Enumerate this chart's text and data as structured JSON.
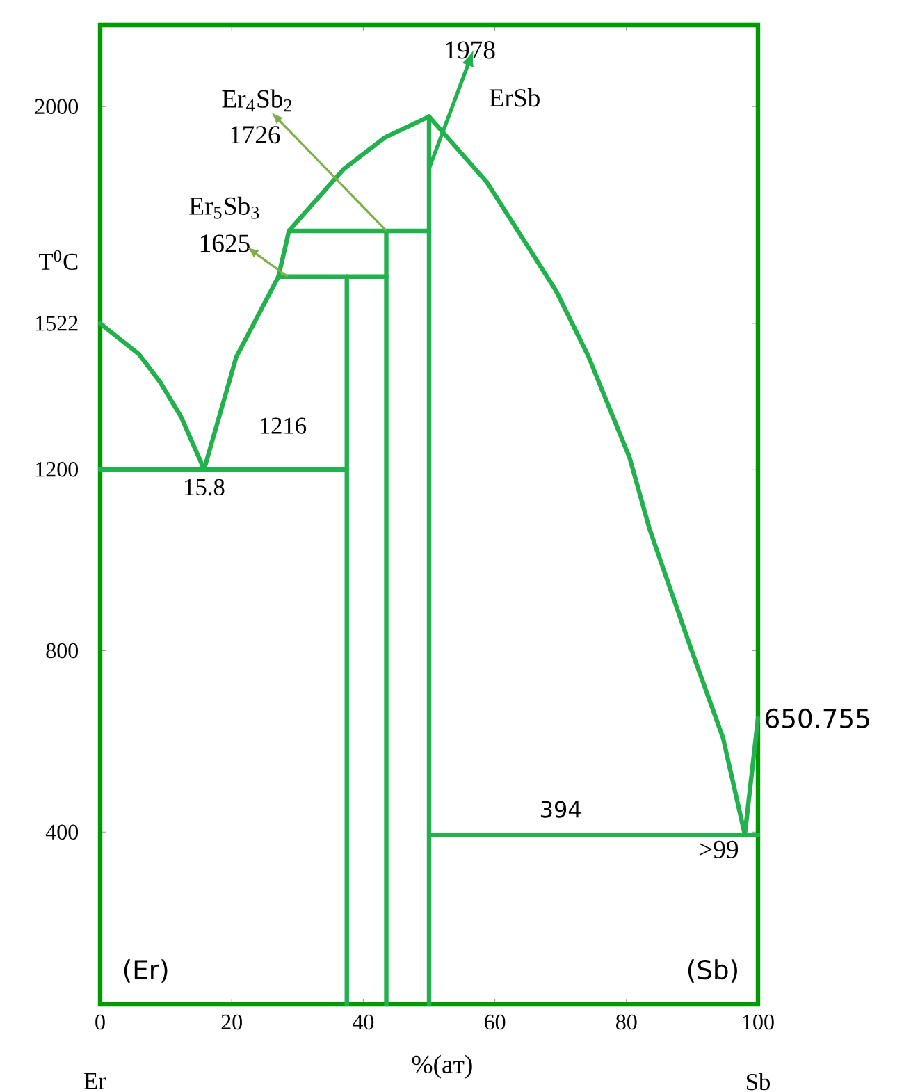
{
  "chart_data": {
    "type": "line",
    "xlabel": "%(aт)",
    "ylabel": "T$^{0}$C",
    "xlim": [
      0,
      100
    ],
    "ylim": [
      20,
      2180
    ],
    "xticks": [
      0,
      20,
      40,
      60,
      80,
      100
    ],
    "yticks": [
      400,
      800,
      1200,
      1522,
      2000
    ],
    "grid": false,
    "marker": "none",
    "line_style": "solid",
    "series": [
      {
        "color": "#22b14c",
        "x": [
          0,
          5.9,
          9.1,
          12.3,
          15.8
        ],
        "values": [
          1522,
          1454,
          1393,
          1316,
          1200
        ]
      },
      {
        "color": "#22b14c",
        "x": [
          15.8,
          20.7,
          27.1,
          28.7,
          37,
          43.3,
          50
        ],
        "values": [
          1200,
          1448,
          1625,
          1726,
          1862,
          1932,
          1978
        ]
      },
      {
        "color": "#22b14c",
        "x": [
          50,
          58.8,
          69.3,
          74.2,
          80.5,
          83.5,
          89.9,
          94.7,
          98
        ],
        "values": [
          1978,
          1833,
          1594,
          1450,
          1225,
          1069,
          801,
          607,
          394
        ]
      },
      {
        "color": "#22b14c",
        "x": [
          98,
          100
        ],
        "values": [
          394,
          650.755
        ]
      },
      {
        "color": "#22b14c",
        "x": [
          0,
          37.5
        ],
        "values": [
          1200,
          1200
        ]
      },
      {
        "color": "#22b14c",
        "x": [
          37.5,
          37.5
        ],
        "values": [
          20,
          1625
        ]
      },
      {
        "color": "#22b14c",
        "x": [
          27.1,
          43.5
        ],
        "values": [
          1625,
          1625
        ]
      },
      {
        "color": "#22b14c",
        "x": [
          43.5,
          43.5
        ],
        "values": [
          20,
          1726
        ]
      },
      {
        "color": "#22b14c",
        "x": [
          28.7,
          50
        ],
        "values": [
          1726,
          1726
        ]
      },
      {
        "color": "#22b14c",
        "x": [
          50,
          50
        ],
        "values": [
          20,
          1978
        ]
      },
      {
        "color": "#22b14c",
        "x": [
          50,
          100
        ],
        "values": [
          394,
          394
        ]
      }
    ],
    "annotations": [
      "Er$_{4}$Sb$_{2}$",
      "1726",
      {
        "text": "Er$_{5}$Sb$_{3}$",
        "x": 28.5,
        "y": 1625
      },
      {
        "text": "1625",
        "x": 28.5,
        "y": 1625
      },
      "ErSb",
      {
        "text": "1978",
        "x": 50,
        "y": 1978
      },
      {
        "text": "1216",
        "x": 30,
        "y": 1216
      },
      {
        "text": "15.8",
        "x": 15.8,
        "y": 1200
      },
      {
        "text": "394",
        "x": 70,
        "y": 394
      },
      {
        "text": ">99",
        "x": 98,
        "y": 394
      },
      {
        "text": "650.755",
        "x": 100,
        "y": 650.755
      },
      "(Er)",
      "(Sb)",
      "Er",
      "Sb"
    ]
  }
}
